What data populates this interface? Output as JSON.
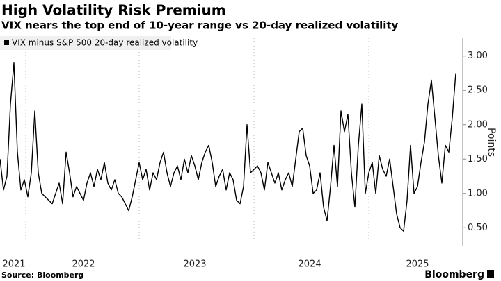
{
  "chart_data": {
    "type": "line",
    "title": "High Volatility Risk Premium",
    "subtitle": "VIX nears the top end of 10-year range vs 20-day realized volatility",
    "y_label": "Points",
    "source": "Source: Bloomberg",
    "brand": "Bloomberg",
    "categories": [
      null,
      null,
      null,
      null,
      "2021",
      null,
      null,
      null,
      null,
      null,
      null,
      null,
      null,
      null,
      null,
      null,
      null,
      null,
      null,
      null,
      null,
      null,
      null,
      null,
      "2022",
      null,
      null,
      null,
      null,
      null,
      null,
      null,
      null,
      null,
      null,
      null,
      null,
      null,
      null,
      null,
      null,
      null,
      null,
      null,
      null,
      null,
      null,
      null,
      null,
      null,
      null,
      null,
      null,
      null,
      null,
      null,
      "2023",
      null,
      null,
      null,
      null,
      null,
      null,
      null,
      null,
      null,
      null,
      null,
      null,
      null,
      null,
      null,
      null,
      null,
      null,
      null,
      null,
      null,
      null,
      null,
      null,
      null,
      null,
      null,
      null,
      null,
      null,
      null,
      null,
      "2024",
      null,
      null,
      null,
      null,
      null,
      null,
      null,
      null,
      null,
      null,
      null,
      null,
      null,
      null,
      null,
      null,
      null,
      null,
      null,
      null,
      null,
      null,
      null,
      null,
      null,
      null,
      null,
      null,
      null,
      null,
      "2025",
      null,
      null,
      null,
      null,
      null,
      null,
      null,
      null,
      null,
      null,
      null
    ],
    "series": [
      {
        "name": "VIX minus S&P 500 20-day realized volatility",
        "color": "#000000",
        "values": [
          1.5,
          1.05,
          1.25,
          2.3,
          2.9,
          1.6,
          1.05,
          1.2,
          0.95,
          1.3,
          2.2,
          1.3,
          1.0,
          0.95,
          0.9,
          0.85,
          1.0,
          1.15,
          0.85,
          1.6,
          1.3,
          0.95,
          1.1,
          1.0,
          0.9,
          1.15,
          1.3,
          1.1,
          1.35,
          1.2,
          1.45,
          1.15,
          1.05,
          1.2,
          1.0,
          0.95,
          0.85,
          0.75,
          0.95,
          1.2,
          1.45,
          1.2,
          1.35,
          1.05,
          1.3,
          1.2,
          1.45,
          1.6,
          1.3,
          1.1,
          1.3,
          1.4,
          1.2,
          1.5,
          1.3,
          1.55,
          1.4,
          1.2,
          1.45,
          1.6,
          1.7,
          1.45,
          1.1,
          1.25,
          1.35,
          1.05,
          1.3,
          1.2,
          0.9,
          0.85,
          1.1,
          2.0,
          1.3,
          1.35,
          1.4,
          1.3,
          1.05,
          1.45,
          1.3,
          1.15,
          1.3,
          1.05,
          1.2,
          1.3,
          1.1,
          1.5,
          1.9,
          1.95,
          1.55,
          1.4,
          1.0,
          1.05,
          1.3,
          0.8,
          0.6,
          1.1,
          1.7,
          1.1,
          2.2,
          1.9,
          2.15,
          1.3,
          0.8,
          1.7,
          2.3,
          1.0,
          1.3,
          1.45,
          1.0,
          1.55,
          1.35,
          1.25,
          1.5,
          1.1,
          0.7,
          0.5,
          0.45,
          0.9,
          1.7,
          1.0,
          1.1,
          1.45,
          1.75,
          2.3,
          2.65,
          2.1,
          1.55,
          1.15,
          1.7,
          1.6,
          2.1,
          2.75
        ]
      }
    ],
    "ylim": [
      0.23,
      3.26
    ],
    "yticks": [
      {
        "value": 0.5,
        "label": "0.50"
      },
      {
        "value": 1,
        "label": "1.00"
      },
      {
        "value": 1.5,
        "label": "1.50"
      },
      {
        "value": 2,
        "label": "2.00"
      },
      {
        "value": 2.5,
        "label": "2.50"
      },
      {
        "value": 3,
        "label": "3.00"
      }
    ],
    "grid": false,
    "legend": "top-left"
  }
}
